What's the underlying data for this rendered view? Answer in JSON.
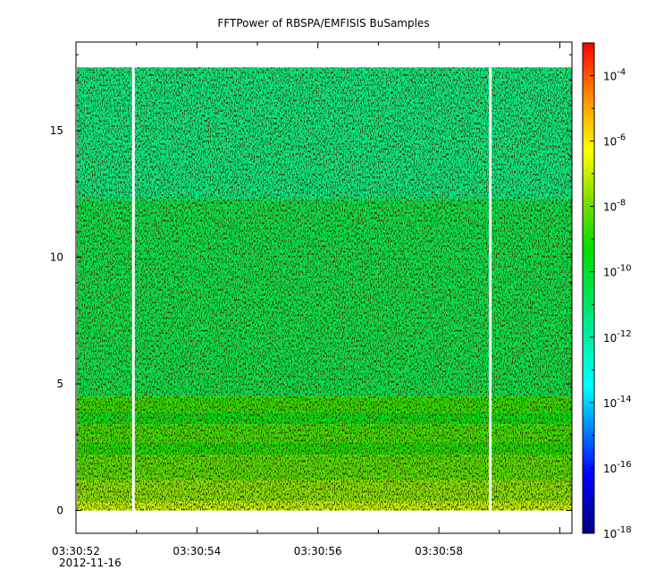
{
  "chart_data": {
    "type": "heatmap",
    "title": "FFTPower of RBSPA/EMFISIS  BuSamples",
    "xlabel": "",
    "ylabel": "",
    "x_start_label": "03:30:52",
    "x_date_label": "2012-11-16",
    "x_tick_labels": [
      "03:30:52",
      "03:30:54",
      "03:30:56",
      "03:30:58"
    ],
    "x_tick_values_s": [
      52,
      54,
      56,
      58
    ],
    "x_range_s": [
      52,
      60.2
    ],
    "x_gaps_s": [
      52.95,
      58.85
    ],
    "y_tick_labels": [
      "0",
      "5",
      "10",
      "15"
    ],
    "y_tick_values": [
      0,
      5,
      10,
      15
    ],
    "ylim": [
      -0.9,
      18.5
    ],
    "data_y_range": [
      0,
      17.5
    ],
    "color_scale": "log",
    "colorbar_range": [
      1e-18,
      0.001
    ],
    "colorbar_tick_values": [
      -4,
      -6,
      -8,
      -10,
      -12,
      -14,
      -16,
      -18
    ],
    "colorbar_tick_base": "10",
    "colorbar_tick_exponents": [
      "-4",
      "-6",
      "-8",
      "-10",
      "-12",
      "-14",
      "-16",
      "-18"
    ],
    "bands": [
      {
        "y_from": 0.0,
        "y_to": 0.35,
        "log_power": -7.0
      },
      {
        "y_from": 0.35,
        "y_to": 1.2,
        "log_power": -7.7
      },
      {
        "y_from": 1.2,
        "y_to": 2.2,
        "log_power": -8.3
      },
      {
        "y_from": 2.2,
        "y_to": 2.7,
        "log_power": -9.0
      },
      {
        "y_from": 2.7,
        "y_to": 3.4,
        "log_power": -8.6
      },
      {
        "y_from": 3.4,
        "y_to": 3.9,
        "log_power": -9.6
      },
      {
        "y_from": 3.9,
        "y_to": 4.5,
        "log_power": -8.8
      },
      {
        "y_from": 4.5,
        "y_to": 12.3,
        "log_power": -10.6
      },
      {
        "y_from": 12.3,
        "y_to": 17.5,
        "log_power": -11.5
      }
    ],
    "colors": {
      "frame": "#000000",
      "gap": "#ffffff",
      "background": "#ffffff"
    }
  }
}
